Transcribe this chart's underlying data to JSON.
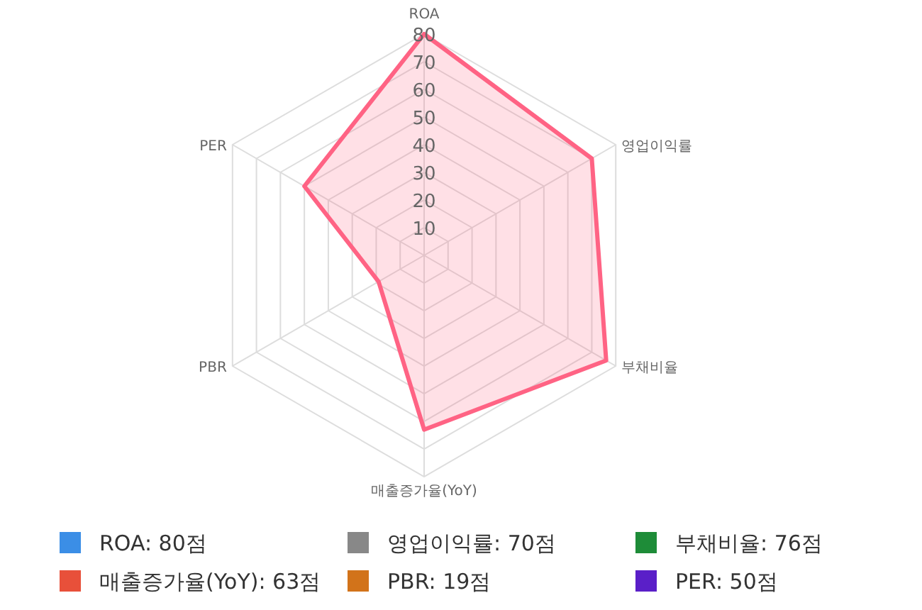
{
  "chart_data": {
    "type": "radar",
    "categories": [
      "ROA",
      "영업이익률",
      "부채비율",
      "매출증가율(YoY)",
      "PBR",
      "PER"
    ],
    "series": [
      {
        "color": "#ff6384",
        "values": [
          80,
          70,
          76,
          63,
          19,
          50
        ]
      }
    ],
    "ylim": [
      0,
      80
    ],
    "yticks": [
      10,
      20,
      30,
      40,
      50,
      60,
      70,
      80
    ],
    "grid": true,
    "colors": [
      "#3b8ee6",
      "#888888",
      "#1e8c38",
      "#e8503a",
      "#d2731a",
      "#5a1fc8"
    ],
    "value_labels": [
      "ROA: 80점",
      "영업이익률: 70점",
      "부채비율: 76점",
      "매출증가율(YoY): 63점",
      "PBR: 19점",
      "PER: 50점"
    ]
  }
}
